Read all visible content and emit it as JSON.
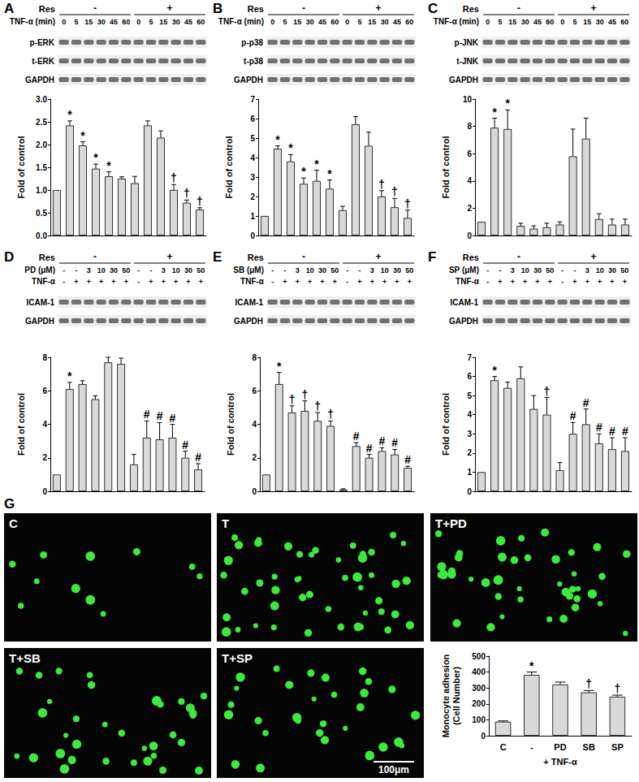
{
  "chart_data": [
    {
      "type": "bar",
      "categories": [
        null,
        null,
        null,
        null,
        null,
        null,
        null,
        null,
        null,
        null,
        null,
        null
      ],
      "values": [
        1.0,
        2.42,
        1.98,
        1.47,
        1.3,
        1.25,
        1.15,
        2.42,
        2.15,
        1.0,
        0.72,
        0.57
      ],
      "errors": [
        0.0,
        0.1,
        0.08,
        0.1,
        0.1,
        0.04,
        0.15,
        0.1,
        0.15,
        0.12,
        0.06,
        0.04
      ],
      "annotations": [
        null,
        "*",
        "*",
        "*",
        "*",
        null,
        null,
        null,
        null,
        "†",
        "†",
        "†"
      ],
      "ylabel": "Fold of control",
      "ylim": [
        0,
        3
      ],
      "yticks": [
        {
          "value": 0,
          "label": "0.0"
        },
        0.5,
        {
          "value": 1,
          "label": "1.0"
        },
        1.5,
        {
          "value": 2,
          "label": "2.0"
        },
        2.5,
        {
          "value": 3,
          "label": "3.0"
        }
      ],
      "color": "#d9d9d9",
      "grid": false,
      "tick_labels": "y"
    },
    {
      "type": "bar",
      "categories": [
        null,
        null,
        null,
        null,
        null,
        null,
        null,
        null,
        null,
        null,
        null,
        null
      ],
      "values": [
        1.0,
        4.45,
        3.8,
        2.65,
        2.8,
        2.4,
        1.3,
        5.7,
        4.6,
        2.0,
        1.45,
        0.9
      ],
      "errors": [
        0.0,
        0.15,
        0.35,
        0.3,
        0.55,
        0.45,
        0.2,
        0.4,
        0.7,
        0.3,
        0.45,
        0.4
      ],
      "annotations": [
        null,
        "*",
        "*",
        "*",
        "*",
        "*",
        null,
        null,
        null,
        "†",
        "†",
        "†"
      ],
      "ylabel": "Fold of control",
      "ylim": [
        0,
        7
      ],
      "yticks": [
        0,
        1,
        2,
        3,
        4,
        5,
        6,
        7
      ],
      "color": "#d9d9d9",
      "grid": false,
      "tick_labels": "y"
    },
    {
      "type": "bar",
      "categories": [
        null,
        null,
        null,
        null,
        null,
        null,
        null,
        null,
        null,
        null,
        null,
        null
      ],
      "values": [
        1.0,
        7.9,
        7.8,
        0.7,
        0.5,
        0.6,
        0.8,
        5.8,
        7.1,
        1.2,
        0.8,
        0.8
      ],
      "errors": [
        0.0,
        0.7,
        1.4,
        0.2,
        0.2,
        0.3,
        0.2,
        2.0,
        1.5,
        0.4,
        0.4,
        0.4
      ],
      "annotations": [
        null,
        "*",
        "*",
        null,
        null,
        null,
        null,
        null,
        null,
        null,
        null,
        null
      ],
      "ylabel": "Fold of control",
      "ylim": [
        0,
        10
      ],
      "yticks": [
        0,
        2,
        4,
        6,
        8,
        10
      ],
      "color": "#d9d9d9",
      "grid": false,
      "tick_labels": "y"
    },
    {
      "type": "bar",
      "categories": [
        null,
        null,
        null,
        null,
        null,
        null,
        null,
        null,
        null,
        null,
        null,
        null
      ],
      "values": [
        1.0,
        6.1,
        6.4,
        5.5,
        7.7,
        7.6,
        1.6,
        3.2,
        3.1,
        3.2,
        2.0,
        1.3
      ],
      "errors": [
        0.0,
        0.4,
        0.2,
        0.2,
        0.3,
        0.35,
        0.6,
        1.0,
        1.0,
        0.8,
        0.4,
        0.35
      ],
      "annotations": [
        null,
        "*",
        null,
        null,
        null,
        null,
        null,
        "#",
        "#",
        "#",
        "#",
        "#"
      ],
      "ylabel": "Fold of control",
      "ylim": [
        0,
        8
      ],
      "yticks": [
        0,
        2,
        4,
        6,
        8
      ],
      "color": "#d9d9d9",
      "grid": false,
      "tick_labels": "y"
    },
    {
      "type": "bar",
      "categories": [
        null,
        null,
        null,
        null,
        null,
        null,
        null,
        null,
        null,
        null,
        null,
        null
      ],
      "values": [
        1.0,
        6.4,
        4.7,
        4.8,
        4.2,
        3.9,
        0.1,
        2.7,
        2.0,
        2.4,
        2.2,
        1.4
      ],
      "errors": [
        0.0,
        0.7,
        0.4,
        0.6,
        0.5,
        0.3,
        0.05,
        0.2,
        0.2,
        0.2,
        0.3,
        0.1
      ],
      "annotations": [
        null,
        "*",
        "†",
        "†",
        "†",
        "†",
        null,
        "#",
        "#",
        "#",
        "#",
        "#"
      ],
      "ylabel": "Fold of control",
      "ylim": [
        0,
        8
      ],
      "yticks": [
        0,
        2,
        4,
        6,
        8
      ],
      "color": "#d9d9d9",
      "grid": false,
      "tick_labels": "y"
    },
    {
      "type": "bar",
      "categories": [
        null,
        null,
        null,
        null,
        null,
        null,
        null,
        null,
        null,
        null,
        null,
        null
      ],
      "values": [
        1.0,
        5.8,
        5.4,
        5.9,
        4.3,
        4.0,
        1.1,
        3.0,
        3.5,
        2.5,
        2.2,
        2.1
      ],
      "errors": [
        0.0,
        0.2,
        0.3,
        0.6,
        0.7,
        0.9,
        0.4,
        0.6,
        0.8,
        0.5,
        0.6,
        0.7
      ],
      "annotations": [
        null,
        "*",
        null,
        null,
        null,
        "†",
        null,
        "#",
        "#",
        "#",
        "#",
        "#"
      ],
      "ylabel": "Fold of control",
      "ylim": [
        0,
        7
      ],
      "yticks": [
        0,
        1,
        2,
        3,
        4,
        5,
        6,
        7
      ],
      "color": "#d9d9d9",
      "grid": false,
      "tick_labels": "y"
    },
    {
      "type": "bar",
      "categories": [
        "C",
        "-",
        "PD",
        "SB",
        "SP"
      ],
      "values": [
        88,
        382,
        322,
        272,
        245
      ],
      "errors": [
        5,
        18,
        15,
        12,
        10
      ],
      "annotations": [
        null,
        "*",
        null,
        "†",
        "†"
      ],
      "xlabel": "+ TNF-α",
      "ylabel": "Monocyte adhesion\n(Cell Number)",
      "ylim": [
        0,
        500
      ],
      "yticks": [
        0,
        100,
        200,
        300,
        400,
        500
      ],
      "color": "#d9d9d9",
      "grid": false
    }
  ],
  "blots": [
    {
      "panel": "A",
      "treatment": "Res",
      "groups": [
        "-",
        "+"
      ],
      "rows": [
        {
          "label": "TNF-α (min)",
          "lanes": [
            "0",
            "5",
            "15",
            "30",
            "45",
            "60",
            "0",
            "5",
            "15",
            "30",
            "45",
            "60"
          ]
        }
      ],
      "bands": [
        "p-ERK",
        "t-ERK",
        "GAPDH"
      ]
    },
    {
      "panel": "B",
      "treatment": "Res",
      "groups": [
        "-",
        "+"
      ],
      "rows": [
        {
          "label": "TNF-α (min)",
          "lanes": [
            "0",
            "5",
            "15",
            "30",
            "45",
            "60",
            "0",
            "5",
            "15",
            "30",
            "45",
            "60"
          ]
        }
      ],
      "bands": [
        "p-p38",
        "t-p38",
        "GAPDH"
      ]
    },
    {
      "panel": "C",
      "treatment": "Res",
      "groups": [
        "-",
        "+"
      ],
      "rows": [
        {
          "label": "TNF-α (min)",
          "lanes": [
            "0",
            "5",
            "15",
            "30",
            "45",
            "60",
            "0",
            "5",
            "15",
            "30",
            "45",
            "60"
          ]
        }
      ],
      "bands": [
        "p-JNK",
        "t-JNK",
        "GAPDH"
      ]
    },
    {
      "panel": "D",
      "treatment": "Res",
      "groups": [
        "-",
        "+"
      ],
      "rows": [
        {
          "label": "PD (μM)",
          "lanes": [
            "-",
            "-",
            "3",
            "10",
            "30",
            "50",
            "-",
            "-",
            "3",
            "10",
            "30",
            "50"
          ]
        },
        {
          "label": "TNF-α",
          "lanes": [
            "-",
            "+",
            "+",
            "+",
            "+",
            "+",
            "-",
            "+",
            "+",
            "+",
            "+",
            "+"
          ]
        }
      ],
      "bands": [
        "ICAM-1",
        "GAPDH"
      ]
    },
    {
      "panel": "E",
      "treatment": "Res",
      "groups": [
        "-",
        "+"
      ],
      "rows": [
        {
          "label": "SB (μM)",
          "lanes": [
            "-",
            "-",
            "3",
            "10",
            "30",
            "50",
            "-",
            "-",
            "3",
            "10",
            "30",
            "50"
          ]
        },
        {
          "label": "TNF-α",
          "lanes": [
            "-",
            "+",
            "+",
            "+",
            "+",
            "+",
            "-",
            "+",
            "+",
            "+",
            "+",
            "+"
          ]
        }
      ],
      "bands": [
        "ICAM-1",
        "GAPDH"
      ]
    },
    {
      "panel": "F",
      "treatment": "Res",
      "groups": [
        "-",
        "+"
      ],
      "rows": [
        {
          "label": "SP (μM)",
          "lanes": [
            "-",
            "-",
            "3",
            "10",
            "30",
            "50",
            "-",
            "-",
            "3",
            "10",
            "30",
            "50"
          ]
        },
        {
          "label": "TNF-α",
          "lanes": [
            "-",
            "+",
            "+",
            "+",
            "+",
            "+",
            "-",
            "+",
            "+",
            "+",
            "+",
            "+"
          ]
        }
      ],
      "bands": [
        "ICAM-1",
        "GAPDH"
      ]
    }
  ],
  "images": {
    "panel": "G",
    "tiles": [
      "C",
      "T",
      "T+PD",
      "T+SB",
      "T+SP"
    ],
    "scale_bar": "100μm"
  }
}
